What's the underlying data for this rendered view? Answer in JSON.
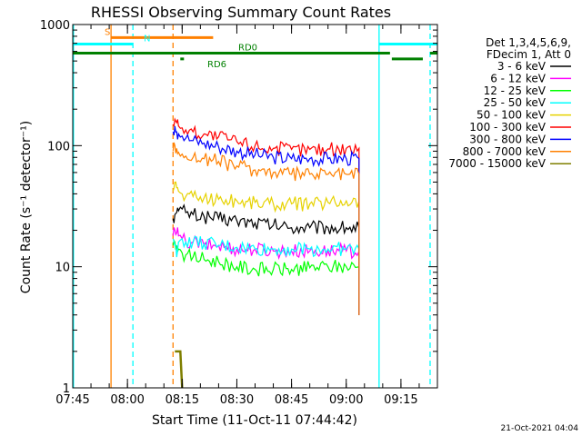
{
  "chart_data": {
    "type": "line",
    "title": "RHESSI Observing Summary Count Rates",
    "xlabel": "Start Time (11-Oct-11 07:44:42)",
    "ylabel": "Count Rate (s⁻¹ detector⁻¹)",
    "yscale": "log",
    "ylim": [
      1,
      1000
    ],
    "xlim_minutes_after_0745": [
      0,
      100
    ],
    "x_ticks": [
      "07:45",
      "08:00",
      "08:15",
      "08:30",
      "08:45",
      "09:00",
      "09:15"
    ],
    "x_tick_minutes": [
      0,
      15,
      30,
      45,
      60,
      75,
      90
    ],
    "y_ticks": [
      "1",
      "10",
      "100",
      "1000"
    ],
    "y_tick_values": [
      1,
      10,
      100,
      1000
    ],
    "legend_header": [
      "Det 1,3,4,5,6,9,",
      "FDecim 1, Att 0"
    ],
    "legend_position": "right",
    "footer_date": "21-Oct-2021 04:04",
    "series": [
      {
        "name": "3 - 6 keV",
        "color": "#000000",
        "x": [
          27.5,
          28,
          28.5,
          29,
          30,
          31,
          33,
          36,
          40,
          45,
          50,
          55,
          60,
          65,
          70,
          75,
          78.5
        ],
        "y": [
          25,
          27,
          28,
          29,
          30,
          28,
          27,
          26,
          25,
          24,
          23,
          22,
          21,
          21,
          21,
          21,
          21
        ]
      },
      {
        "name": "6 - 12 keV",
        "color": "#ff00ff",
        "x": [
          27.5,
          28,
          28.5,
          29,
          30,
          31,
          33,
          36,
          40,
          45,
          50,
          55,
          60,
          65,
          70,
          75,
          78.5
        ],
        "y": [
          18,
          20,
          19,
          18,
          17,
          16,
          16,
          15,
          15,
          14,
          14,
          13.5,
          13.5,
          13.5,
          13.5,
          13.5,
          13.5
        ]
      },
      {
        "name": "12 - 25 keV",
        "color": "#00ff00",
        "x": [
          27.5,
          28,
          28.5,
          29,
          30,
          31,
          33,
          36,
          40,
          45,
          50,
          55,
          60,
          65,
          70,
          75,
          78.5
        ],
        "y": [
          15,
          16,
          15,
          14,
          13,
          12.5,
          12,
          11.5,
          11,
          10,
          9.5,
          9.5,
          9.5,
          9.8,
          10,
          10,
          10
        ]
      },
      {
        "name": "25 - 50 keV",
        "color": "#00ffff",
        "x": [
          27.5,
          28,
          28.5,
          29,
          30,
          31,
          33,
          36,
          40,
          45,
          50,
          55,
          60,
          65,
          70,
          75,
          78.5
        ],
        "y": [
          17,
          15,
          12,
          16,
          17,
          16,
          16,
          15.5,
          15,
          14.5,
          14,
          14,
          14,
          14,
          14,
          14,
          14
        ]
      },
      {
        "name": "50 - 100 keV",
        "color": "#e6d200",
        "x": [
          27.5,
          28,
          28.5,
          29,
          30,
          31,
          33,
          36,
          40,
          45,
          50,
          55,
          60,
          65,
          70,
          75,
          78.5
        ],
        "y": [
          42,
          50,
          45,
          42,
          40,
          38,
          38,
          37,
          36,
          35,
          34,
          33,
          33,
          33,
          34,
          35,
          35
        ]
      },
      {
        "name": "100 - 300 keV",
        "color": "#ff0000",
        "x": [
          27.5,
          28,
          28.5,
          29,
          30,
          31,
          33,
          36,
          40,
          45,
          50,
          55,
          60,
          65,
          70,
          75,
          78.5
        ],
        "y": [
          150,
          165,
          155,
          145,
          140,
          135,
          130,
          125,
          118,
          108,
          100,
          95,
          93,
          93,
          94,
          95,
          95
        ]
      },
      {
        "name": "300 - 800 keV",
        "color": "#0000ff",
        "x": [
          27.5,
          28,
          28.5,
          29,
          30,
          31,
          33,
          36,
          40,
          45,
          50,
          55,
          60,
          65,
          70,
          75,
          78.5
        ],
        "y": [
          130,
          145,
          130,
          125,
          120,
          115,
          110,
          105,
          98,
          90,
          84,
          80,
          78,
          78,
          78,
          78,
          78
        ]
      },
      {
        "name": "800 - 7000 keV",
        "color": "#ff8000",
        "x": [
          27.5,
          28,
          28.5,
          29,
          30,
          31,
          33,
          36,
          40,
          45,
          50,
          55,
          60,
          65,
          70,
          75,
          78.5
        ],
        "y": [
          90,
          100,
          95,
          88,
          85,
          82,
          80,
          78,
          74,
          68,
          63,
          60,
          58,
          58,
          58,
          58,
          58
        ]
      },
      {
        "name": "7000 - 15000 keV",
        "color": "#7f7f00",
        "x": [
          28,
          28.5,
          29,
          29.5,
          30
        ],
        "y": [
          2,
          2,
          2,
          2,
          1
        ]
      }
    ],
    "flag_bars": [
      {
        "label": "S",
        "color": "#ff8000",
        "y_level": 780,
        "segments": [
          [
            10.5,
            38.5
          ]
        ]
      },
      {
        "label": "N",
        "color": "#00ffff",
        "y_level": 690,
        "segments": [
          [
            0,
            16.5
          ],
          [
            84,
            100
          ]
        ]
      },
      {
        "label": "RD0",
        "color": "#008000",
        "y_level": 580,
        "segments": [
          [
            0,
            87
          ],
          [
            98,
            100
          ]
        ]
      },
      {
        "label": "RD6",
        "color": "#008000",
        "y_level": 520,
        "segments": [
          [
            29.5,
            30.5
          ],
          [
            87.5,
            96
          ]
        ]
      }
    ],
    "vertical_markers": [
      {
        "x": 0.2,
        "color": "#00ffff",
        "style": "solid"
      },
      {
        "x": 10.5,
        "color": "#ff8000",
        "style": "solid"
      },
      {
        "x": 16.5,
        "color": "#00ffff",
        "style": "dashed"
      },
      {
        "x": 27.5,
        "color": "#ff8000",
        "style": "dashed"
      },
      {
        "x": 84,
        "color": "#00ffff",
        "style": "solid"
      },
      {
        "x": 98,
        "color": "#00ffff",
        "style": "dashed"
      }
    ]
  }
}
